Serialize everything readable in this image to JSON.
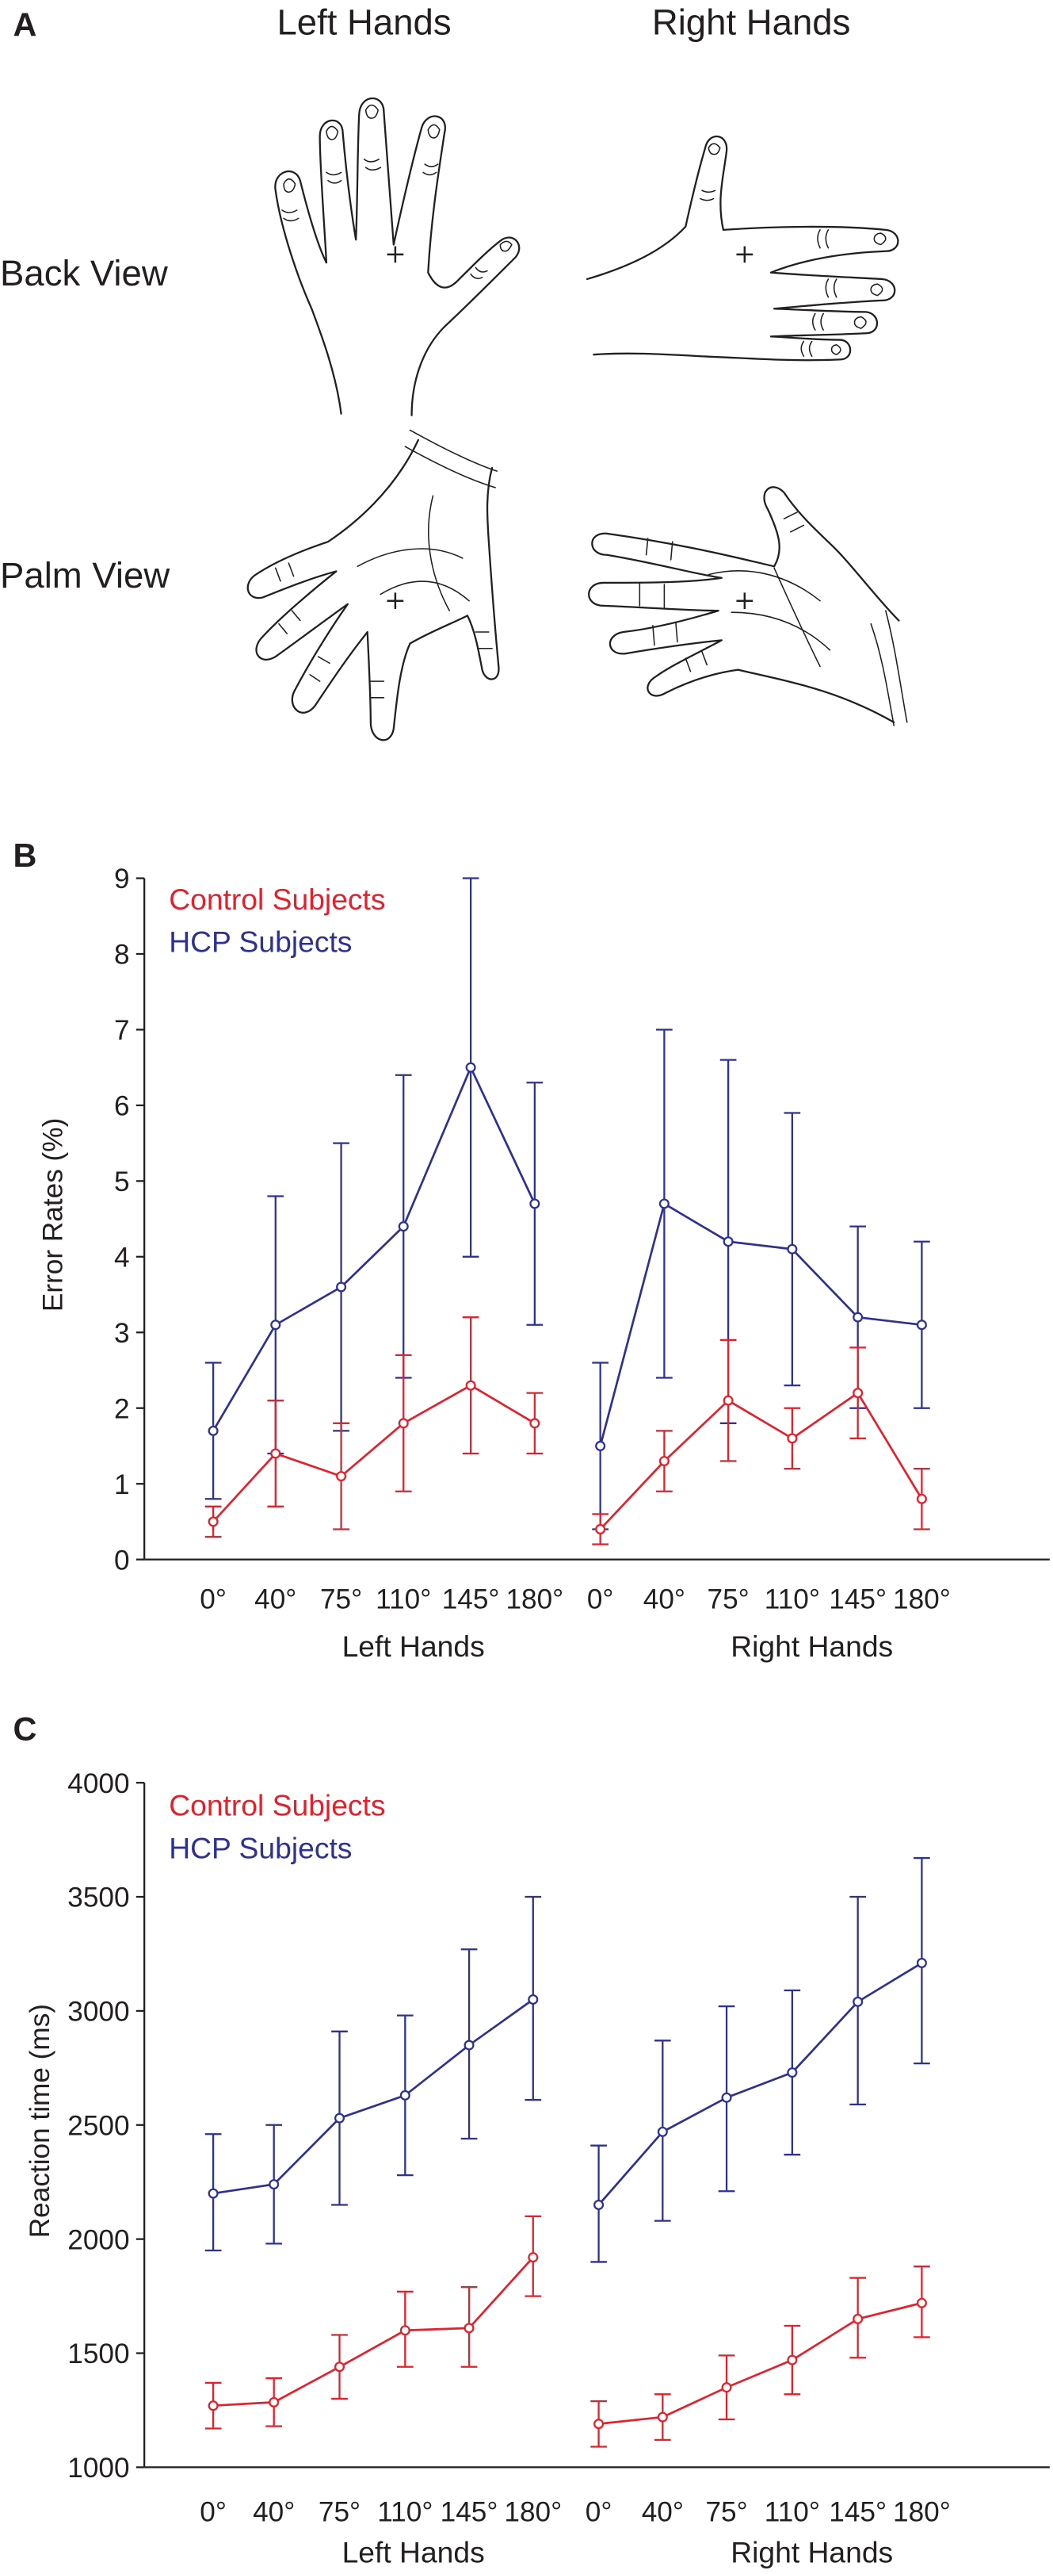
{
  "panel_a": {
    "label": "A",
    "col_left": "Left Hands",
    "col_right": "Right Hands",
    "row_back": "Back View",
    "row_palm": "Palm View"
  },
  "colors": {
    "control": "#e4202b",
    "hcp": "#2e3192",
    "ink": "#231f20"
  },
  "chart_data": [
    {
      "panel_label": "B",
      "type": "line",
      "ylabel": "Error Rates (%)",
      "ylim": [
        0,
        9
      ],
      "yticks": [
        0,
        1,
        2,
        3,
        4,
        5,
        6,
        7,
        8,
        9
      ],
      "grid": false,
      "legend_position": "top-left",
      "groups": [
        {
          "label": "Left Hands",
          "categories": [
            "0°",
            "40°",
            "75°",
            "110°",
            "145°",
            "180°"
          ]
        },
        {
          "label": "Right Hands",
          "categories": [
            "0°",
            "40°",
            "75°",
            "110°",
            "145°",
            "180°"
          ]
        }
      ],
      "series": [
        {
          "name": "Control Subjects",
          "color": "#e4202b",
          "mean": [
            [
              0.5,
              1.4,
              1.1,
              1.8,
              2.3,
              1.8
            ],
            [
              0.4,
              1.3,
              2.1,
              1.6,
              2.2,
              0.8
            ]
          ],
          "lower": [
            [
              0.3,
              0.7,
              0.4,
              0.9,
              1.4,
              1.4
            ],
            [
              0.2,
              0.9,
              1.3,
              1.2,
              1.6,
              0.4
            ]
          ],
          "upper": [
            [
              0.7,
              2.1,
              1.8,
              2.7,
              3.2,
              2.2
            ],
            [
              0.6,
              1.7,
              2.9,
              2.0,
              2.8,
              1.2
            ]
          ]
        },
        {
          "name": "HCP Subjects",
          "color": "#2e3192",
          "mean": [
            [
              1.7,
              3.1,
              3.6,
              4.4,
              6.5,
              4.7
            ],
            [
              1.5,
              4.7,
              4.2,
              4.1,
              3.2,
              3.1
            ]
          ],
          "lower": [
            [
              0.8,
              1.4,
              1.7,
              2.4,
              4.0,
              3.1
            ],
            [
              0.4,
              2.4,
              1.8,
              2.3,
              2.0,
              2.0
            ]
          ],
          "upper": [
            [
              2.6,
              4.8,
              5.5,
              6.4,
              9.0,
              6.3
            ],
            [
              2.6,
              7.0,
              6.6,
              5.9,
              4.4,
              4.2
            ]
          ]
        }
      ]
    },
    {
      "panel_label": "C",
      "type": "line",
      "ylabel": "Reaction time (ms)",
      "ylim": [
        1000,
        4000
      ],
      "yticks": [
        1000,
        1500,
        2000,
        2500,
        3000,
        3500,
        4000
      ],
      "grid": false,
      "legend_position": "top-left",
      "groups": [
        {
          "label": "Left Hands",
          "categories": [
            "0°",
            "40°",
            "75°",
            "110°",
            "145°",
            "180°"
          ]
        },
        {
          "label": "Right Hands",
          "categories": [
            "0°",
            "40°",
            "75°",
            "110°",
            "145°",
            "180°"
          ]
        }
      ],
      "series": [
        {
          "name": "Control Subjects",
          "color": "#e4202b",
          "mean": [
            [
              1270,
              1285,
              1440,
              1600,
              1610,
              1920
            ],
            [
              1190,
              1220,
              1350,
              1470,
              1650,
              1720
            ]
          ],
          "lower": [
            [
              1170,
              1180,
              1300,
              1440,
              1440,
              1750
            ],
            [
              1090,
              1120,
              1210,
              1320,
              1480,
              1570
            ]
          ],
          "upper": [
            [
              1370,
              1390,
              1580,
              1770,
              1790,
              2100
            ],
            [
              1290,
              1320,
              1490,
              1620,
              1830,
              1880
            ]
          ]
        },
        {
          "name": "HCP Subjects",
          "color": "#2e3192",
          "mean": [
            [
              2200,
              2240,
              2530,
              2630,
              2850,
              3050
            ],
            [
              2150,
              2470,
              2620,
              2730,
              3040,
              3210
            ]
          ],
          "lower": [
            [
              1950,
              1980,
              2150,
              2280,
              2440,
              2610
            ],
            [
              1900,
              2080,
              2210,
              2370,
              2590,
              2770
            ]
          ],
          "upper": [
            [
              2460,
              2500,
              2910,
              2980,
              3270,
              3500
            ],
            [
              2410,
              2870,
              3020,
              3090,
              3500,
              3670
            ]
          ]
        }
      ]
    }
  ]
}
